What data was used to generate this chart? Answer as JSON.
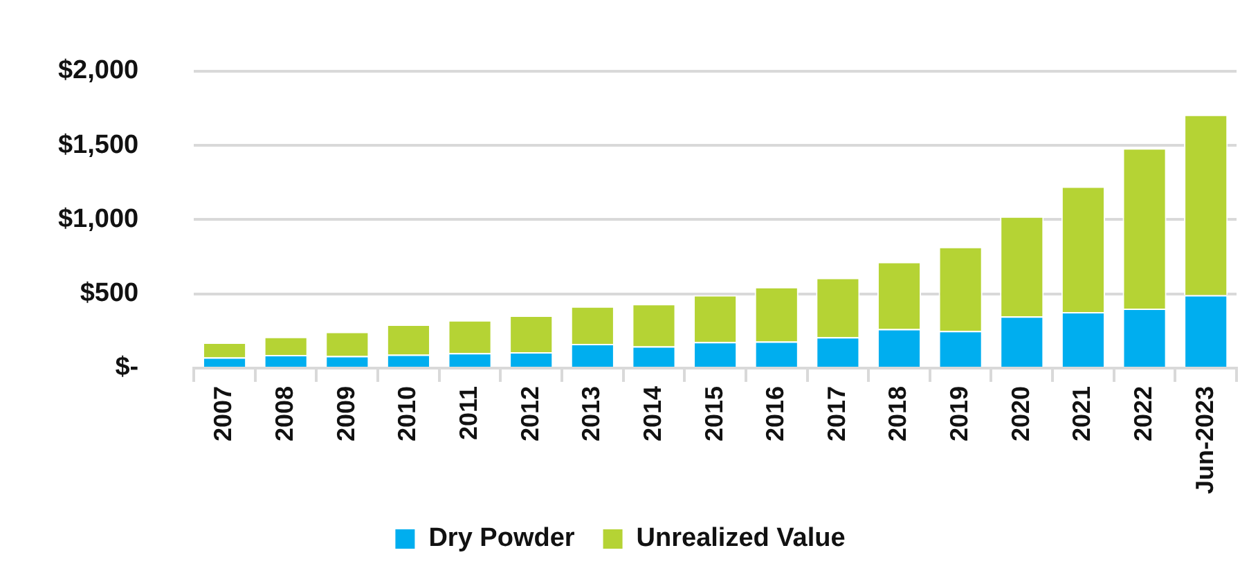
{
  "chart_data": {
    "type": "bar",
    "stacked": true,
    "categories": [
      "2007",
      "2008",
      "2009",
      "2010",
      "2011",
      "2012",
      "2013",
      "2014",
      "2015",
      "2016",
      "2017",
      "2018",
      "2019",
      "2020",
      "2021",
      "2022",
      "Jun-2023"
    ],
    "series": [
      {
        "name": "Dry Powder",
        "color": "#00aeef",
        "values": [
          72,
          88,
          81,
          91,
          101,
          107,
          163,
          146,
          176,
          179,
          208,
          263,
          250,
          348,
          377,
          400,
          491
        ]
      },
      {
        "name": "Unrealized Value",
        "color": "#b5d334",
        "values": [
          100,
          123,
          163,
          202,
          221,
          247,
          253,
          286,
          315,
          367,
          400,
          452,
          566,
          673,
          846,
          1080,
          1216
        ]
      }
    ],
    "ylim": [
      0,
      2000
    ],
    "yticks": [
      {
        "value": 0,
        "label": "$-"
      },
      {
        "value": 500,
        "label": "$500"
      },
      {
        "value": 1000,
        "label": "$1,000"
      },
      {
        "value": 1500,
        "label": "$1,500"
      },
      {
        "value": 2000,
        "label": "$2,000"
      }
    ],
    "grid": "y",
    "legend": "bottom"
  }
}
